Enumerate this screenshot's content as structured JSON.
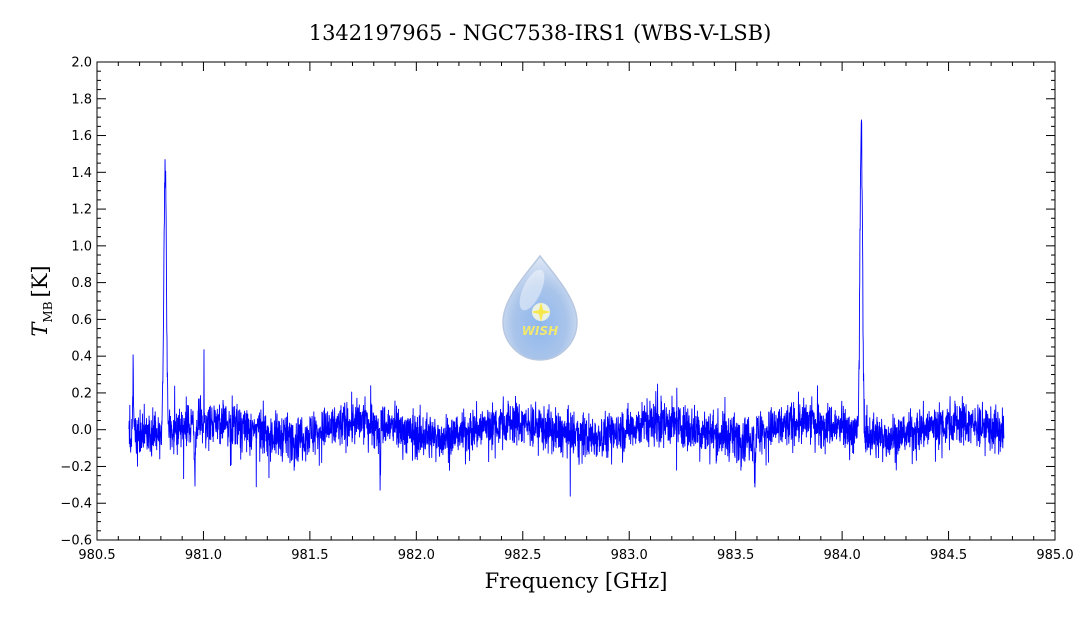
{
  "chart_data": {
    "type": "line",
    "title": "1342197965 - NGC7538-IRS1 (WBS-V-LSB)",
    "xlabel": "Frequency [GHz]",
    "ylabel_main": "T",
    "ylabel_sub": "MB",
    "ylabel_unit": "[K]",
    "xlim": [
      980.5,
      985.0
    ],
    "ylim": [
      -0.6,
      2.0
    ],
    "x_ticks": [
      "980.5",
      "981.0",
      "981.5",
      "982.0",
      "982.5",
      "983.0",
      "983.5",
      "984.0",
      "984.5",
      "985.0"
    ],
    "y_ticks": [
      "−0.6",
      "−0.4",
      "−0.2",
      "0.0",
      "0.2",
      "0.4",
      "0.6",
      "0.8",
      "1.0",
      "1.2",
      "1.4",
      "1.6",
      "1.8",
      "2.0"
    ],
    "line_color": "#0000ff",
    "grid": false,
    "series": [
      {
        "x_range": [
          980.65,
          984.76
        ],
        "noise_level": 0.11,
        "baseline": 0.0,
        "features": [
          {
            "kind": "peak",
            "x": 980.82,
            "y": 1.51
          },
          {
            "kind": "peak",
            "x": 984.09,
            "y": 1.73
          },
          {
            "kind": "edge",
            "x": 980.67,
            "y": 0.45
          },
          {
            "kind": "dip",
            "x": 980.96,
            "y": -0.34
          },
          {
            "kind": "dip",
            "x": 981.83,
            "y": -0.38
          },
          {
            "kind": "dip",
            "x": 983.59,
            "y": -0.35
          }
        ]
      }
    ]
  },
  "logo": {
    "text": "WISH"
  }
}
